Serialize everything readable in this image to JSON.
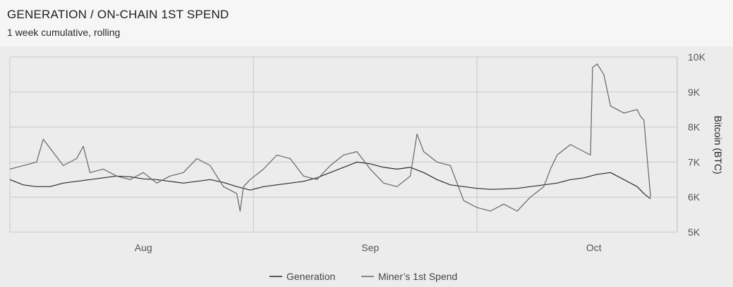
{
  "header": {
    "title": "GENERATION / ON-CHAIN 1ST SPEND",
    "subtitle": "1 week cumulative, rolling"
  },
  "chart_data": {
    "type": "line",
    "ylabel": "Bitcoin (BTC)",
    "ylim": [
      5000,
      10000
    ],
    "y_ticks": [
      {
        "value": 5000,
        "label": "5K"
      },
      {
        "value": 6000,
        "label": "6K"
      },
      {
        "value": 7000,
        "label": "7K"
      },
      {
        "value": 8000,
        "label": "8K"
      },
      {
        "value": 9000,
        "label": "9K"
      },
      {
        "value": 10000,
        "label": "10K"
      }
    ],
    "x_domain": [
      0,
      100
    ],
    "x_ticks": [
      {
        "x": 20,
        "label": "Aug"
      },
      {
        "x": 54,
        "label": "Sep"
      },
      {
        "x": 87.5,
        "label": "Oct"
      }
    ],
    "x_gridlines": [
      0,
      36.5,
      70
    ],
    "grid": true,
    "legend_position": "bottom",
    "series": [
      {
        "name": "Generation",
        "color": "#2b2b2b",
        "x": [
          0,
          2,
          4,
          6,
          8,
          10,
          12,
          14,
          16,
          18,
          20,
          22,
          24,
          26,
          28,
          30,
          32,
          34,
          36,
          38,
          40,
          42,
          44,
          46,
          48,
          50,
          52,
          54,
          56,
          58,
          60,
          62,
          64,
          66,
          68,
          70,
          72,
          74,
          76,
          78,
          80,
          82,
          84,
          86,
          88,
          90,
          92,
          94,
          95,
          96
        ],
        "values": [
          6500,
          6350,
          6300,
          6300,
          6400,
          6450,
          6500,
          6550,
          6600,
          6580,
          6520,
          6500,
          6450,
          6400,
          6450,
          6500,
          6420,
          6300,
          6200,
          6300,
          6350,
          6400,
          6450,
          6550,
          6700,
          6850,
          7000,
          6950,
          6850,
          6800,
          6850,
          6700,
          6500,
          6350,
          6300,
          6250,
          6220,
          6230,
          6250,
          6300,
          6350,
          6400,
          6500,
          6550,
          6650,
          6700,
          6500,
          6300,
          6100,
          5950
        ]
      },
      {
        "name": "Miner’s 1st Spend",
        "color": "#666666",
        "x": [
          0,
          2,
          4,
          5,
          6,
          8,
          10,
          11,
          12,
          14,
          16,
          18,
          20,
          22,
          24,
          26,
          28,
          30,
          32,
          34,
          34.5,
          35,
          36,
          38,
          40,
          42,
          44,
          46,
          48,
          50,
          52,
          54,
          56,
          58,
          60,
          61,
          62,
          64,
          66,
          67,
          68,
          70,
          72,
          74,
          76,
          78,
          80,
          81,
          82,
          84,
          86,
          87,
          87.3,
          88,
          89,
          90,
          92,
          94,
          94.5,
          95,
          96
        ],
        "values": [
          6800,
          6900,
          7000,
          7650,
          7400,
          6900,
          7100,
          7450,
          6700,
          6800,
          6600,
          6500,
          6700,
          6400,
          6600,
          6700,
          7100,
          6900,
          6300,
          6100,
          5600,
          6300,
          6500,
          6800,
          7200,
          7100,
          6600,
          6500,
          6900,
          7200,
          7300,
          6800,
          6400,
          6300,
          6600,
          7800,
          7300,
          7000,
          6900,
          6400,
          5900,
          5700,
          5600,
          5800,
          5600,
          6000,
          6300,
          6800,
          7200,
          7500,
          7300,
          7200,
          9700,
          9800,
          9500,
          8600,
          8400,
          8500,
          8300,
          8200,
          6000
        ]
      }
    ]
  }
}
